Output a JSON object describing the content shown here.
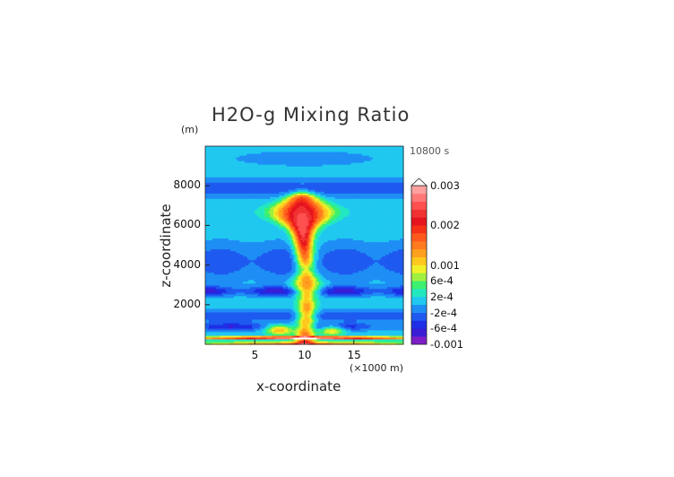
{
  "chart_data": {
    "type": "heatmap",
    "title": "H2O-g Mixing Ratio",
    "timestamp": "10800 s",
    "ylabel": "z-coordinate",
    "xlabel": "x-coordinate",
    "y_unit": "(m)",
    "x_unit": "(×1000 m)",
    "xlim": [
      0,
      20
    ],
    "ylim": [
      0,
      10000
    ],
    "x_ticks": [
      "5",
      "10",
      "15"
    ],
    "x_tick_values": [
      5,
      10,
      15
    ],
    "y_ticks": [
      "2000",
      "4000",
      "6000",
      "8000"
    ],
    "y_tick_values": [
      2000,
      4000,
      6000,
      8000
    ],
    "colorbar": {
      "labels": [
        "0.003",
        "0.002",
        "0.001",
        "6e-4",
        "2e-4",
        "-2e-4",
        "-6e-4",
        "-0.001"
      ],
      "label_values": [
        0.003,
        0.002,
        0.001,
        0.0006,
        0.0002,
        -0.0002,
        -0.0006,
        -0.001
      ],
      "levels": [
        -0.001,
        -0.0008,
        -0.0006,
        -0.0004,
        -0.0002,
        0,
        0.0002,
        0.0004,
        0.0006,
        0.0008,
        0.001,
        0.0012,
        0.0014,
        0.0016,
        0.0018,
        0.002,
        0.0022,
        0.0024,
        0.0026,
        0.0028,
        0.003
      ],
      "colors": [
        "#7d1ec8",
        "#3a1ed6",
        "#1e2ee6",
        "#1e5af0",
        "#1e8ef5",
        "#20c8f0",
        "#22e8c0",
        "#3cf070",
        "#a0f040",
        "#f0f028",
        "#ffc81e",
        "#ffa01e",
        "#ff7a1e",
        "#ff5a1e",
        "#f53218",
        "#e6141e",
        "#f03232",
        "#ff5050",
        "#ff7878",
        "#ffa0a0"
      ],
      "extend_top_color": "#ffffff"
    },
    "field_description_values": {
      "background_upper": 0.0001,
      "band_1500m": -0.0004,
      "band_2700m": -0.0007,
      "plume_core_max": 0.0025,
      "surface_layer": 0.0015
    }
  }
}
